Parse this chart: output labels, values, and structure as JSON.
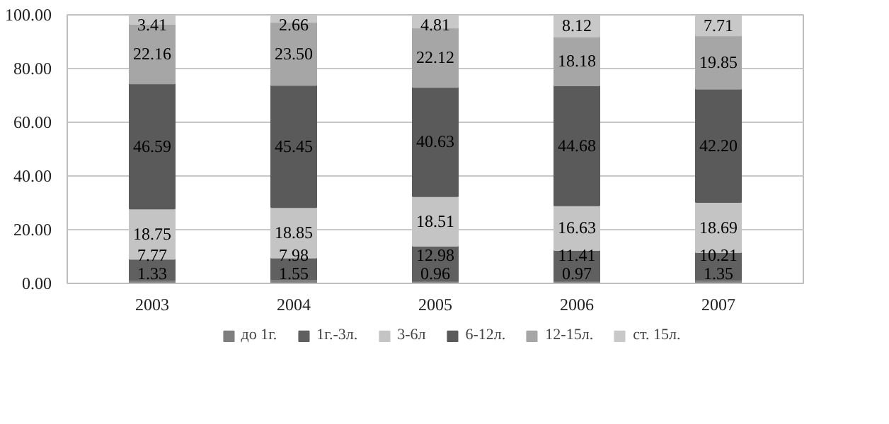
{
  "chart_data": {
    "type": "bar",
    "stacked": true,
    "categories": [
      "2003",
      "2004",
      "2005",
      "2006",
      "2007"
    ],
    "series": [
      {
        "name": "до 1г.",
        "color": "#7f7f7f",
        "values": [
          1.33,
          1.55,
          0.96,
          0.97,
          1.35
        ],
        "value_labels": [
          "1.33",
          "1.55",
          "0.96",
          "0.97",
          "1.35"
        ]
      },
      {
        "name": "1г.-3л.",
        "color": "#606060",
        "values": [
          7.77,
          7.98,
          12.98,
          11.41,
          10.21
        ],
        "value_labels": [
          "7.77",
          "7.98",
          "12.98",
          "11.41",
          "10.21"
        ]
      },
      {
        "name": "3-6л",
        "color": "#c4c4c4",
        "values": [
          18.75,
          18.85,
          18.51,
          16.63,
          18.69
        ],
        "value_labels": [
          "18.75",
          "18.85",
          "18.51",
          "16.63",
          "18.69"
        ]
      },
      {
        "name": "6-12л.",
        "color": "#5a5a5a",
        "values": [
          46.59,
          45.45,
          40.63,
          44.68,
          42.2
        ],
        "value_labels": [
          "46.59",
          "45.45",
          "40.63",
          "44.68",
          "42.20"
        ]
      },
      {
        "name": "12-15л.",
        "color": "#a6a6a6",
        "values": [
          22.16,
          23.5,
          22.12,
          18.18,
          19.85
        ],
        "value_labels": [
          "22.16",
          "23.50",
          "22.12",
          "18.18",
          "19.85"
        ]
      },
      {
        "name": "ст. 15л.",
        "color": "#c8c8c8",
        "values": [
          3.41,
          2.66,
          4.81,
          8.12,
          7.71
        ],
        "value_labels": [
          "3.41",
          "2.66",
          "4.81",
          "8.12",
          "7.71"
        ]
      }
    ],
    "ylim": [
      0,
      100
    ],
    "yticks": [
      {
        "value": 0,
        "label": "0.00"
      },
      {
        "value": 20,
        "label": "20.00"
      },
      {
        "value": 40,
        "label": "40.00"
      },
      {
        "value": 60,
        "label": "60.00"
      },
      {
        "value": 80,
        "label": "80.00"
      },
      {
        "value": 100,
        "label": "100.00"
      }
    ],
    "grid": "y",
    "legend": "bottom"
  }
}
